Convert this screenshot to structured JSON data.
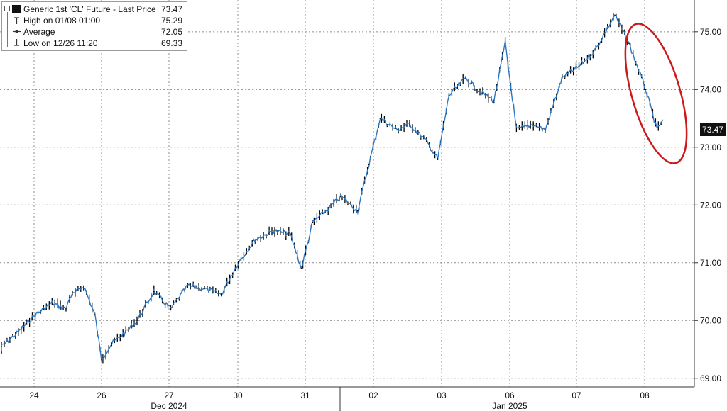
{
  "legend": {
    "title": "Generic 1st 'CL' Future - Last Price",
    "last_price": "73.47",
    "high_label": "High on 01/08 01:00",
    "high_value": "75.29",
    "avg_label": "Average",
    "avg_value": "72.05",
    "low_label": "Low on 12/26 11:20",
    "low_value": "69.33"
  },
  "last_price_tag": "73.47",
  "colors": {
    "series": "#2a77c2",
    "bar": "#000000",
    "annotation": "#cc1a1a",
    "grid": "#8c8c8c"
  },
  "chart_data": {
    "type": "line",
    "title": "Generic 1st 'CL' Future - Last Price",
    "ylim": [
      68.85,
      75.55
    ],
    "yticks": [
      "69.00",
      "70.00",
      "71.00",
      "72.00",
      "73.00",
      "74.00",
      "75.00"
    ],
    "x_day_labels": [
      "24",
      "26",
      "27",
      "30",
      "31",
      "02",
      "03",
      "06",
      "07",
      "08"
    ],
    "x_month_labels": [
      "Dec 2024",
      "Jan 2025"
    ],
    "grid": true,
    "series": [
      {
        "x": [
          "12/23 18:00",
          "12/24 00:00",
          "12/24 06:00",
          "12/24 12:00",
          "12/24 18:00",
          "12/24 23:00",
          "12/26 00:00",
          "12/26 05:00",
          "12/26 09:00",
          "12/26 11:20",
          "12/26 15:00",
          "12/26 20:00",
          "12/27 00:00",
          "12/27 06:00",
          "12/27 12:00",
          "12/27 18:00",
          "12/30 00:00",
          "12/30 06:00",
          "12/30 12:00",
          "12/30 18:00",
          "12/31 00:00",
          "12/31 06:00",
          "12/31 10:00",
          "12/31 14:00",
          "12/31 20:00",
          "01/02 00:00",
          "01/02 06:00",
          "01/02 10:00",
          "01/02 14:00",
          "01/02 20:00",
          "01/03 00:00",
          "01/03 06:00",
          "01/03 10:00",
          "01/03 14:00",
          "01/03 20:00",
          "01/06 00:00",
          "01/06 06:00",
          "01/06 10:00",
          "01/06 14:00",
          "01/06 20:00",
          "01/07 00:00",
          "01/07 06:00",
          "01/07 12:00",
          "01/07 18:00",
          "01/08 01:00",
          "01/08 06:00",
          "01/08 12:00",
          "01/08 16:00",
          "01/08 18:00"
        ],
        "y": [
          69.45,
          69.55,
          69.8,
          70.1,
          70.3,
          70.2,
          70.4,
          70.6,
          70.1,
          69.33,
          69.6,
          69.8,
          70.0,
          70.5,
          70.2,
          70.6,
          70.55,
          70.45,
          71.0,
          71.4,
          71.55,
          71.5,
          70.9,
          71.7,
          71.95,
          72.15,
          71.9,
          72.7,
          73.5,
          73.3,
          73.4,
          73.1,
          72.8,
          73.9,
          74.2,
          74.0,
          73.8,
          74.8,
          73.3,
          73.4,
          73.3,
          74.2,
          74.4,
          74.7,
          75.29,
          74.8,
          74.0,
          73.3,
          73.47
        ]
      }
    ]
  }
}
